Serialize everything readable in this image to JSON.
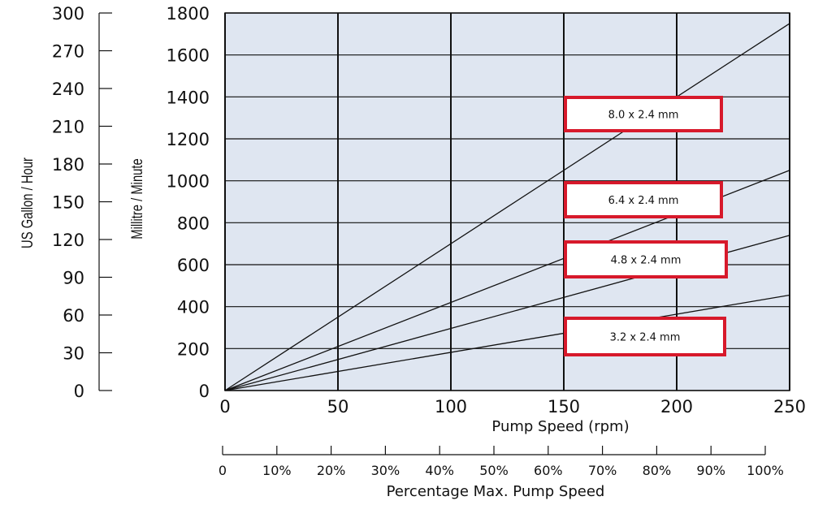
{
  "chart_data": {
    "type": "line",
    "x_axis": {
      "label": "Pump Speed (rpm)",
      "range": [
        0,
        250
      ],
      "ticks": [
        "0",
        "50",
        "100",
        "150",
        "200",
        "250"
      ]
    },
    "y_axis_left_ml": {
      "label": "Millitre / Minute",
      "range": [
        0,
        1800
      ],
      "ticks": [
        "0",
        "200",
        "400",
        "600",
        "800",
        "1000",
        "1200",
        "1400",
        "1600",
        "1800"
      ]
    },
    "y_axis_left_gal": {
      "label": "US Gallon / Hour",
      "range": [
        0,
        300
      ],
      "ticks": [
        "0",
        "30",
        "60",
        "90",
        "120",
        "150",
        "180",
        "210",
        "240",
        "270",
        "300"
      ]
    },
    "percent_axis": {
      "label": "Percentage Max. Pump Speed",
      "ticks": [
        "0",
        "10%",
        "20%",
        "30%",
        "40%",
        "50%",
        "60%",
        "70%",
        "80%",
        "90%",
        "100%"
      ]
    },
    "grid": true,
    "series": [
      {
        "name": "8.0 x 2.4 mm",
        "x": [
          0,
          250
        ],
        "y": [
          0,
          1750
        ]
      },
      {
        "name": "6.4 x 2.4 mm",
        "x": [
          0,
          250
        ],
        "y": [
          0,
          1050
        ]
      },
      {
        "name": "4.8 x 2.4 mm",
        "x": [
          0,
          250
        ],
        "y": [
          0,
          740
        ]
      },
      {
        "name": "3.2 x 2.4 mm",
        "x": [
          0,
          250
        ],
        "y": [
          0,
          455
        ]
      }
    ],
    "colors": {
      "plot_background": "#dfe6f1",
      "line": "#111111",
      "label_border": "#d7192b"
    }
  }
}
